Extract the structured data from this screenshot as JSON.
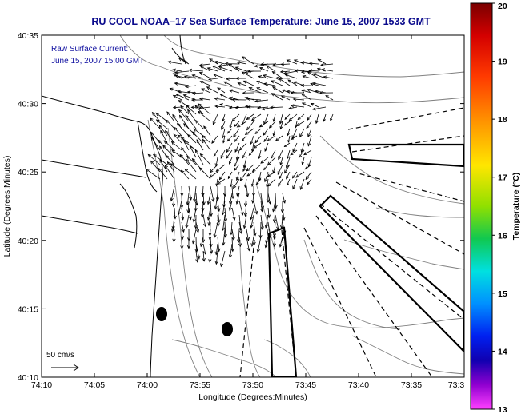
{
  "title": "RU COOL   NOAA–17  Sea Surface Temperature:  June 15, 2007 1533 GMT",
  "annotation": {
    "line1": "Raw Surface Current:",
    "line2": "June 15, 2007 15:00 GMT"
  },
  "xlabel": "Longitude (Degrees:Minutes)",
  "ylabel": "Latitude (Degrees:Minutes)",
  "x_ticks": [
    "74:10",
    "74:05",
    "74:00",
    "73:55",
    "73:50",
    "73:45",
    "73:40",
    "73:35",
    "73:3"
  ],
  "y_ticks": [
    "40:35",
    "40:30",
    "40:25",
    "40:20",
    "40:15",
    "40:10"
  ],
  "scale_label": "50 cm/s",
  "colorbar": {
    "label": "Temperature (°C)",
    "ticks": [
      "20",
      "19",
      "18",
      "17",
      "16",
      "15",
      "14",
      "13"
    ],
    "range": [
      13,
      20
    ]
  },
  "colors": {
    "title": "#0a0a8c",
    "annotation": "#1010a0",
    "contour": "#808080",
    "coast": "#000000"
  }
}
